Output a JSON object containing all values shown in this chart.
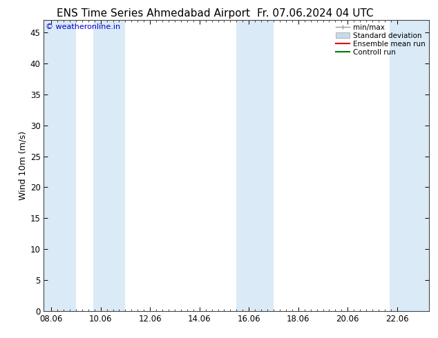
{
  "title": "ENS Time Series Ahmedabad Airport",
  "title_right": "Fr. 07.06.2024 04 UTC",
  "ylabel": "Wind 10m (m/s)",
  "watermark": "© weatheronline.in",
  "bg_color": "#ffffff",
  "plot_bg_color": "#ffffff",
  "shaded_band_color": "#daeaf7",
  "yticks": [
    0,
    5,
    10,
    15,
    20,
    25,
    30,
    35,
    40,
    45
  ],
  "ylim": [
    0,
    47
  ],
  "xtick_labels": [
    "08.06",
    "10.06",
    "12.06",
    "14.06",
    "16.06",
    "18.06",
    "20.06",
    "22.06"
  ],
  "xtick_positions": [
    0,
    2,
    4,
    6,
    8,
    10,
    12,
    14
  ],
  "xlim": [
    -0.3,
    15.3
  ],
  "shaded_bands": [
    [
      -0.3,
      1.0
    ],
    [
      1.7,
      3.0
    ],
    [
      7.5,
      9.0
    ],
    [
      13.7,
      15.3
    ]
  ],
  "legend_items": [
    {
      "label": "min/max",
      "color": "#aabbcc",
      "type": "minmax"
    },
    {
      "label": "Standard deviation",
      "color": "#c8daea",
      "type": "stddev"
    },
    {
      "label": "Ensemble mean run",
      "color": "#dd0000",
      "type": "line"
    },
    {
      "label": "Controll run",
      "color": "#007700",
      "type": "line"
    }
  ],
  "tick_label_fontsize": 8.5,
  "axis_label_fontsize": 9,
  "title_fontsize": 11,
  "watermark_color": "#0000cc",
  "watermark_fontsize": 8
}
